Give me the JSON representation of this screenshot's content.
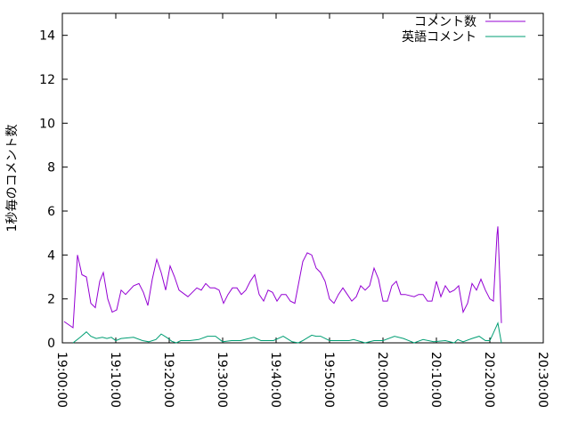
{
  "chart_data": {
    "type": "line",
    "title": "",
    "xlabel": "",
    "ylabel": "1秒毎のコメント数",
    "xlim": [
      "19:00:00",
      "20:30:00"
    ],
    "ylim": [
      0,
      15
    ],
    "x_ticks": [
      "19:00:00",
      "19:10:00",
      "19:20:00",
      "19:30:00",
      "19:40:00",
      "19:50:00",
      "20:00:00",
      "20:10:00",
      "20:20:00",
      "20:30:00"
    ],
    "y_ticks": [
      0,
      2,
      4,
      6,
      8,
      10,
      12,
      14
    ],
    "grid": false,
    "legend_position": "top-right",
    "series": [
      {
        "name": "コメント数",
        "color": "#9400d3",
        "x": [
          "19:00:20",
          "19:02:00",
          "19:02:50",
          "19:03:40",
          "19:04:30",
          "19:05:20",
          "19:06:10",
          "19:07:00",
          "19:07:40",
          "19:08:30",
          "19:09:20",
          "19:10:10",
          "19:11:00",
          "19:11:50",
          "19:13:20",
          "19:14:20",
          "19:15:10",
          "19:16:00",
          "19:16:50",
          "19:17:40",
          "19:18:30",
          "19:19:20",
          "19:20:10",
          "19:21:00",
          "19:21:50",
          "19:23:30",
          "19:25:10",
          "19:26:00",
          "19:26:50",
          "19:27:40",
          "19:28:30",
          "19:29:20",
          "19:30:10",
          "19:31:00",
          "19:31:50",
          "19:32:40",
          "19:33:30",
          "19:34:20",
          "19:35:10",
          "19:36:00",
          "19:36:50",
          "19:37:40",
          "19:38:30",
          "19:39:20",
          "19:40:10",
          "19:41:00",
          "19:41:50",
          "19:42:40",
          "19:43:30",
          "19:45:00",
          "19:45:50",
          "19:46:40",
          "19:47:30",
          "19:48:20",
          "19:49:10",
          "19:50:00",
          "19:50:50",
          "19:51:40",
          "19:52:30",
          "19:53:20",
          "19:54:10",
          "19:55:00",
          "19:55:50",
          "19:56:40",
          "19:57:30",
          "19:58:20",
          "19:59:10",
          "20:00:00",
          "20:00:50",
          "20:01:40",
          "20:02:30",
          "20:03:20",
          "20:04:10",
          "20:05:50",
          "20:06:40",
          "20:07:30",
          "20:08:20",
          "20:09:10",
          "20:10:00",
          "20:10:50",
          "20:11:40",
          "20:12:30",
          "20:13:20",
          "20:14:10",
          "20:15:00",
          "20:15:50",
          "20:16:40",
          "20:17:30",
          "20:18:20",
          "20:19:10",
          "20:20:00",
          "20:20:40",
          "20:21:20",
          "20:21:30",
          "20:22:10"
        ],
        "values": [
          0.97,
          0.69,
          4.0,
          3.1,
          3.0,
          1.8,
          1.6,
          2.8,
          3.2,
          2.0,
          1.4,
          1.5,
          2.4,
          2.2,
          2.6,
          2.7,
          2.3,
          1.7,
          2.9,
          3.8,
          3.2,
          2.4,
          3.5,
          3.0,
          2.4,
          2.1,
          2.5,
          2.4,
          2.7,
          2.5,
          2.5,
          2.4,
          1.8,
          2.2,
          2.5,
          2.5,
          2.2,
          2.4,
          2.8,
          3.1,
          2.2,
          1.9,
          2.4,
          2.3,
          1.9,
          2.2,
          2.2,
          1.9,
          1.8,
          3.7,
          4.1,
          4.0,
          3.4,
          3.2,
          2.8,
          2.0,
          1.8,
          2.2,
          2.5,
          2.2,
          1.9,
          2.1,
          2.6,
          2.4,
          2.6,
          3.4,
          2.9,
          1.9,
          1.9,
          2.6,
          2.8,
          2.2,
          2.2,
          2.1,
          2.2,
          2.2,
          1.9,
          1.9,
          2.8,
          2.1,
          2.6,
          2.3,
          2.4,
          2.6,
          1.4,
          1.8,
          2.7,
          2.4,
          2.9,
          2.4,
          2.0,
          1.9,
          4.9,
          5.3,
          0.9
        ]
      },
      {
        "name": "英語コメント",
        "color": "#009e73",
        "x": [
          "19:02:00",
          "19:03:20",
          "19:04:30",
          "19:05:20",
          "19:06:20",
          "19:07:30",
          "19:08:20",
          "19:09:10",
          "19:10:00",
          "19:11:00",
          "19:13:20",
          "19:15:00",
          "19:16:10",
          "19:17:30",
          "19:18:30",
          "19:19:30",
          "19:20:30",
          "19:21:20",
          "19:22:10",
          "19:23:50",
          "19:25:30",
          "19:27:10",
          "19:28:40",
          "19:30:00",
          "19:31:40",
          "19:33:20",
          "19:35:50",
          "19:37:10",
          "19:39:30",
          "19:41:20",
          "19:43:00",
          "19:44:10",
          "19:45:00",
          "19:46:40",
          "19:47:30",
          "19:48:20",
          "19:50:00",
          "19:53:40",
          "19:54:30",
          "19:56:40",
          "19:58:20",
          "20:00:00",
          "20:02:10",
          "20:03:50",
          "20:05:50",
          "20:07:30",
          "20:09:30",
          "20:11:40",
          "20:13:20",
          "20:14:00",
          "20:15:00",
          "20:16:40",
          "20:18:00",
          "20:19:10",
          "20:20:00",
          "20:20:40",
          "20:21:30",
          "20:22:10"
        ],
        "values": [
          0,
          0.25,
          0.5,
          0.3,
          0.2,
          0.25,
          0.2,
          0.25,
          0.1,
          0.2,
          0.25,
          0.1,
          0.05,
          0.15,
          0.4,
          0.25,
          0.07,
          0,
          0.1,
          0.1,
          0.15,
          0.3,
          0.3,
          0.05,
          0.1,
          0.1,
          0.25,
          0.1,
          0.1,
          0.3,
          0.05,
          0,
          0.1,
          0.35,
          0.3,
          0.3,
          0.1,
          0.1,
          0.15,
          0,
          0.1,
          0.1,
          0.3,
          0.2,
          0,
          0.15,
          0.05,
          0.1,
          0,
          0.15,
          0.05,
          0.2,
          0.3,
          0.1,
          0.1,
          0.45,
          0.9,
          0
        ]
      }
    ]
  }
}
